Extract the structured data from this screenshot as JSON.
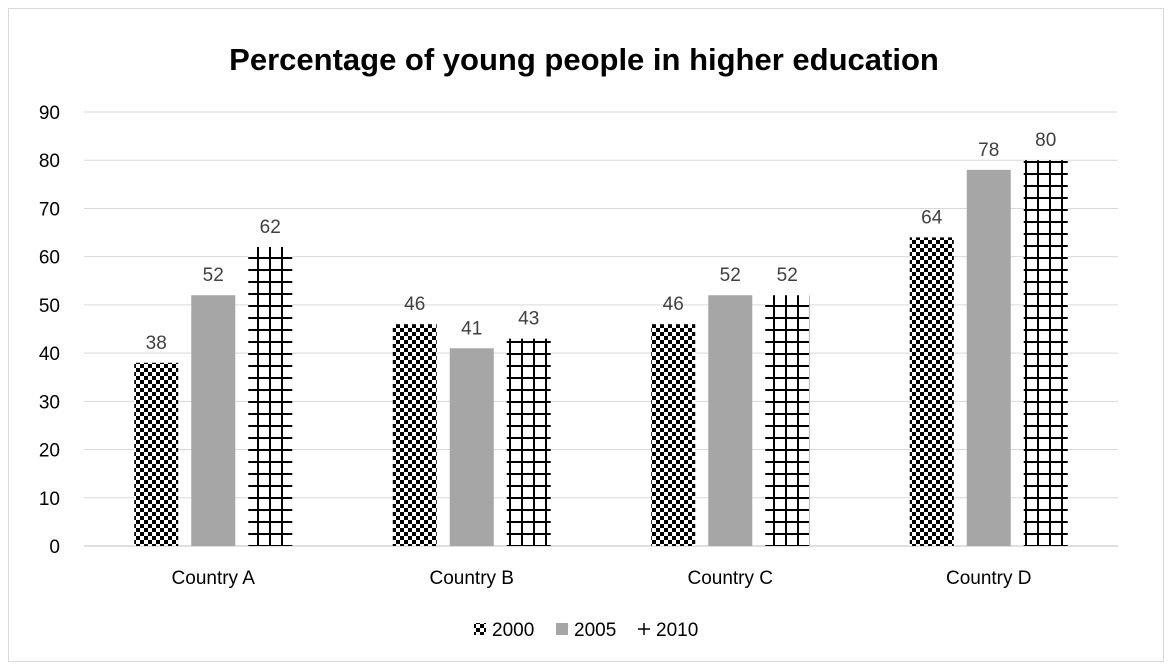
{
  "chart_data": {
    "type": "bar",
    "title": "Percentage of young people in higher education",
    "xlabel": "",
    "ylabel": "",
    "categories": [
      "Country A",
      "Country B",
      "Country C",
      "Country D"
    ],
    "series": [
      {
        "name": "2000",
        "values": [
          38,
          46,
          46,
          64
        ],
        "pattern": "checker",
        "color": "#000000"
      },
      {
        "name": "2005",
        "values": [
          52,
          41,
          52,
          78
        ],
        "pattern": "solid",
        "color": "#a6a6a6"
      },
      {
        "name": "2010",
        "values": [
          62,
          43,
          52,
          80
        ],
        "pattern": "grid",
        "color": "#000000"
      }
    ],
    "ylim": [
      0,
      90
    ],
    "yticks": [
      0,
      10,
      20,
      30,
      40,
      50,
      60,
      70,
      80,
      90
    ],
    "grid": true,
    "legend_position": "bottom",
    "data_labels": true
  }
}
